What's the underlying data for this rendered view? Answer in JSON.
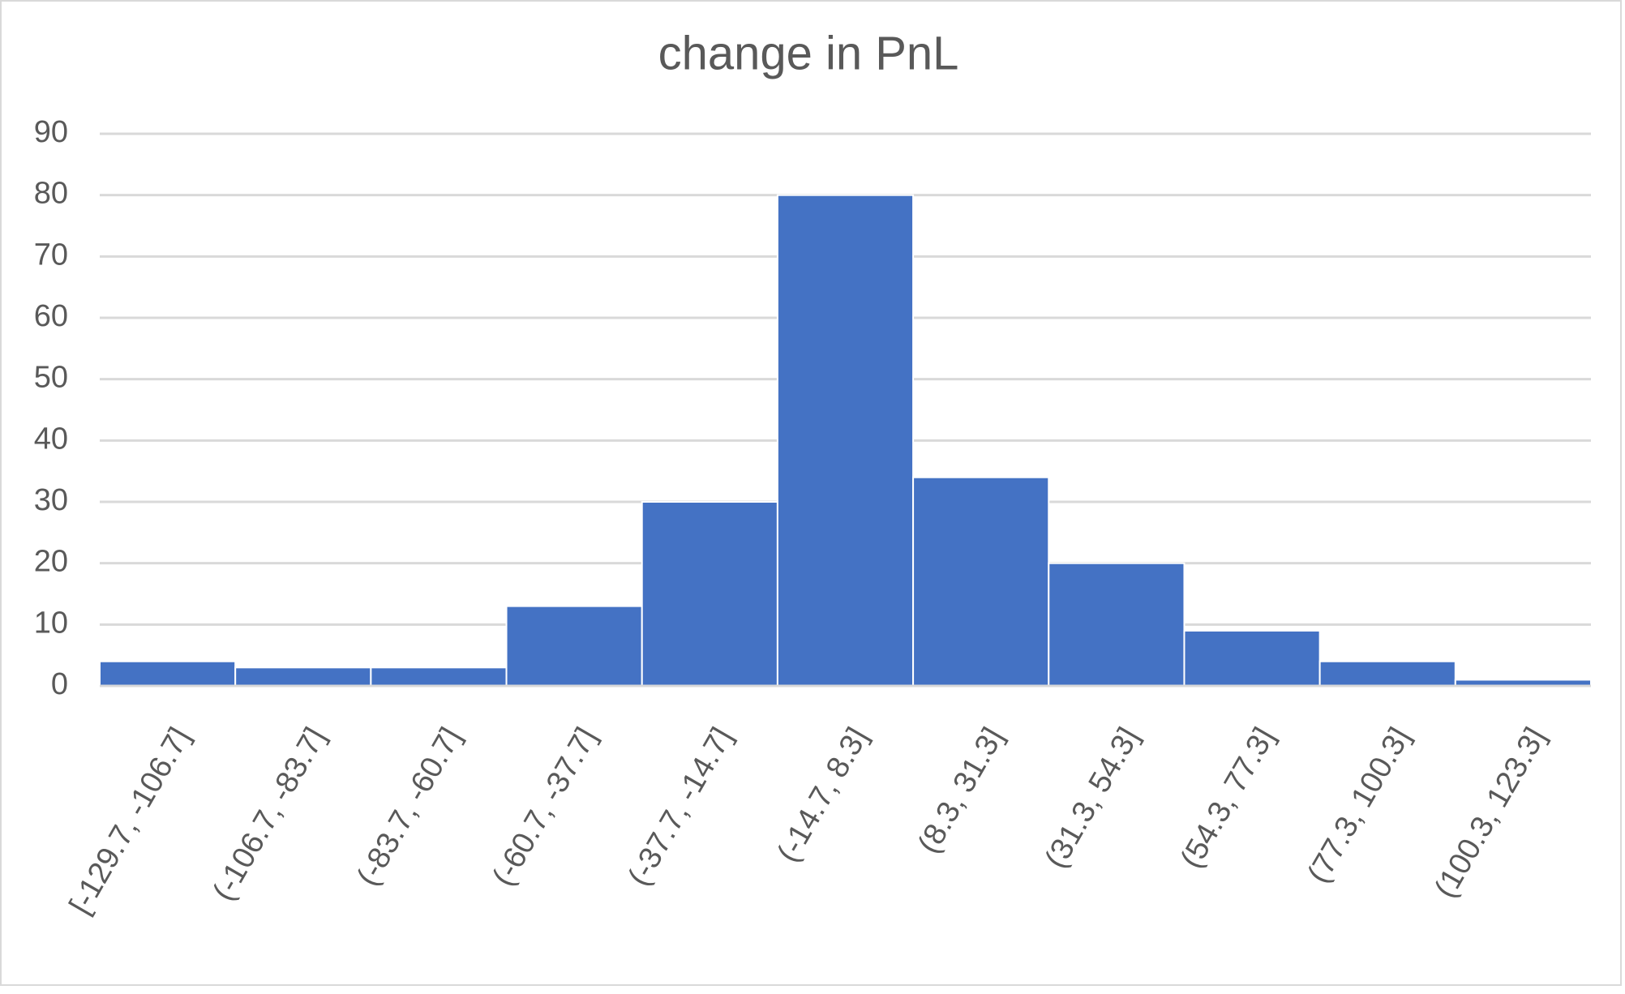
{
  "chart_data": {
    "type": "bar",
    "title": "change in PnL",
    "categories": [
      "[-129.7, -106.7]",
      "(-106.7, -83.7]",
      "(-83.7, -60.7]",
      "(-60.7, -37.7]",
      "(-37.7, -14.7]",
      "(-14.7, 8.3]",
      "(8.3, 31.3]",
      "(31.3, 54.3]",
      "(54.3, 77.3]",
      "(77.3, 100.3]",
      "(100.3, 123.3]"
    ],
    "values": [
      4,
      3,
      3,
      13,
      30,
      80,
      34,
      20,
      9,
      4,
      1
    ],
    "color": "#4472c4",
    "ylim": [
      0,
      90
    ],
    "yticks": [
      0,
      10,
      20,
      30,
      40,
      50,
      60,
      70,
      80,
      90
    ],
    "grid": true
  }
}
